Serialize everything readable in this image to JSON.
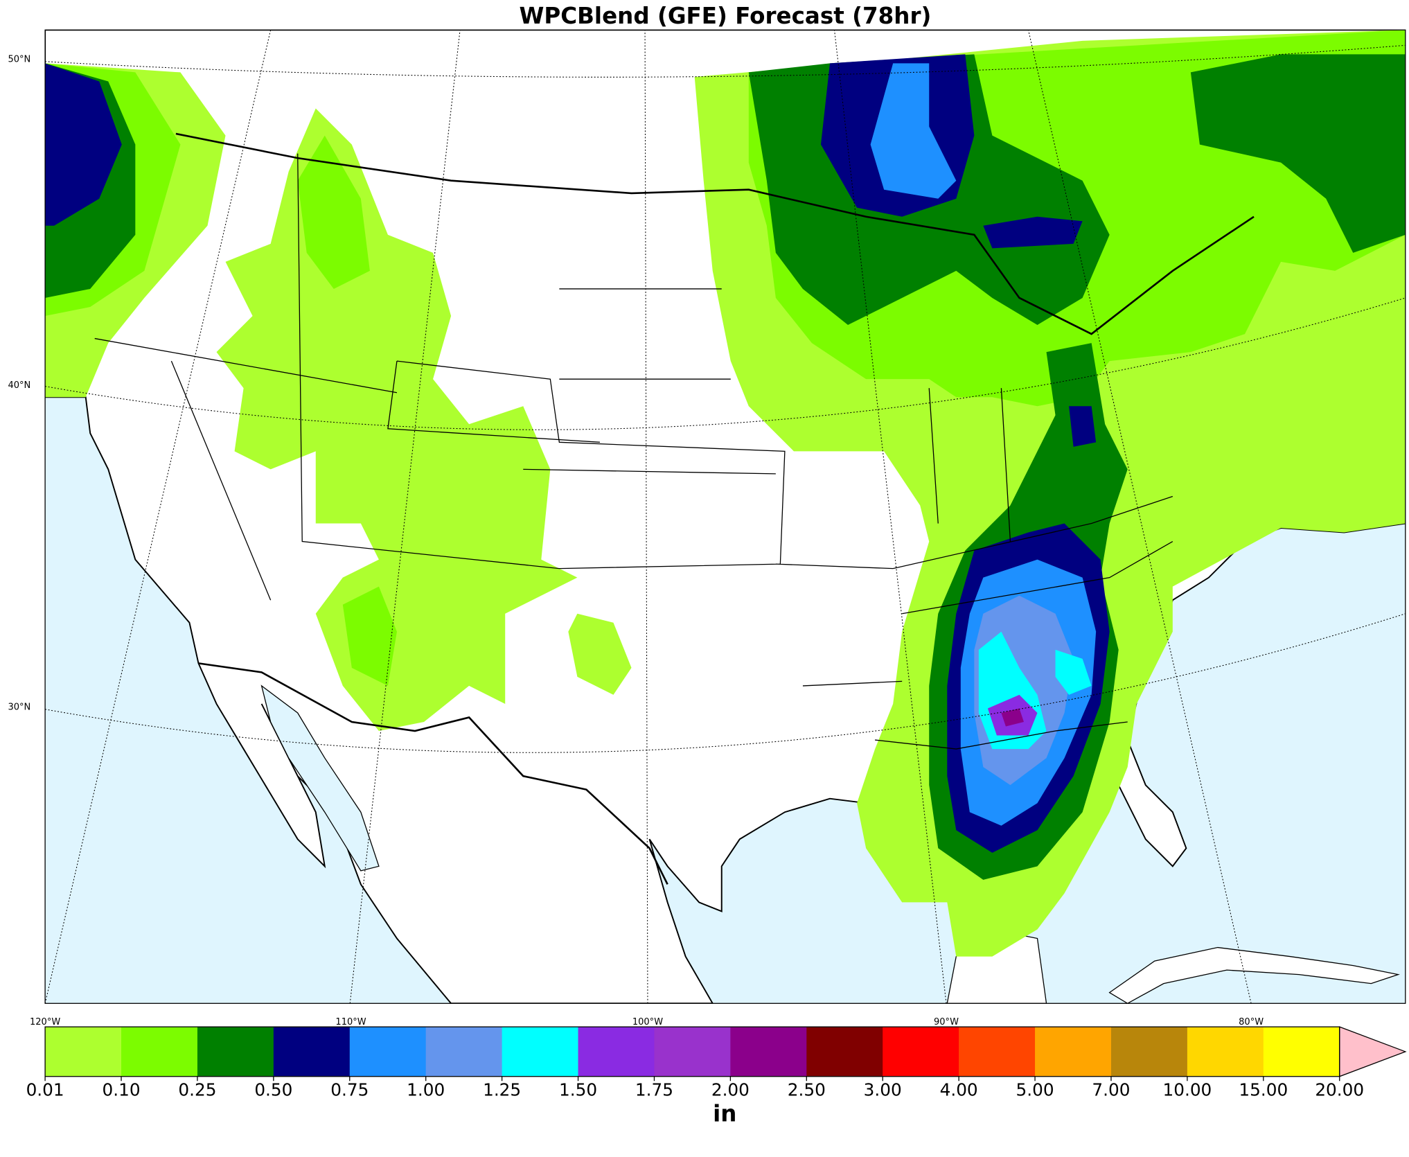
{
  "title": "WPCBlend (GFE) Forecast (78hr)",
  "latitude_labels": [
    "50°N",
    "40°N",
    "30°N"
  ],
  "longitude_labels": [
    "120°W",
    "110°W",
    "100°W",
    "90°W",
    "80°W"
  ],
  "colorbar": {
    "levels": [
      "0.01",
      "0.10",
      "0.25",
      "0.50",
      "0.75",
      "1.00",
      "1.25",
      "1.50",
      "1.75",
      "2.00",
      "2.50",
      "3.00",
      "4.00",
      "5.00",
      "7.00",
      "10.00",
      "15.00",
      "20.00"
    ],
    "colors": [
      "#adff2f",
      "#7cfc00",
      "#008000",
      "#000080",
      "#1e90ff",
      "#6495ed",
      "#00ffff",
      "#8a2be2",
      "#9932cc",
      "#8b008b",
      "#800000",
      "#ff0000",
      "#ff4500",
      "#ffa500",
      "#b8860b",
      "#ffd700",
      "#ffff00"
    ],
    "extend_color": "pink",
    "unit": "in"
  }
}
